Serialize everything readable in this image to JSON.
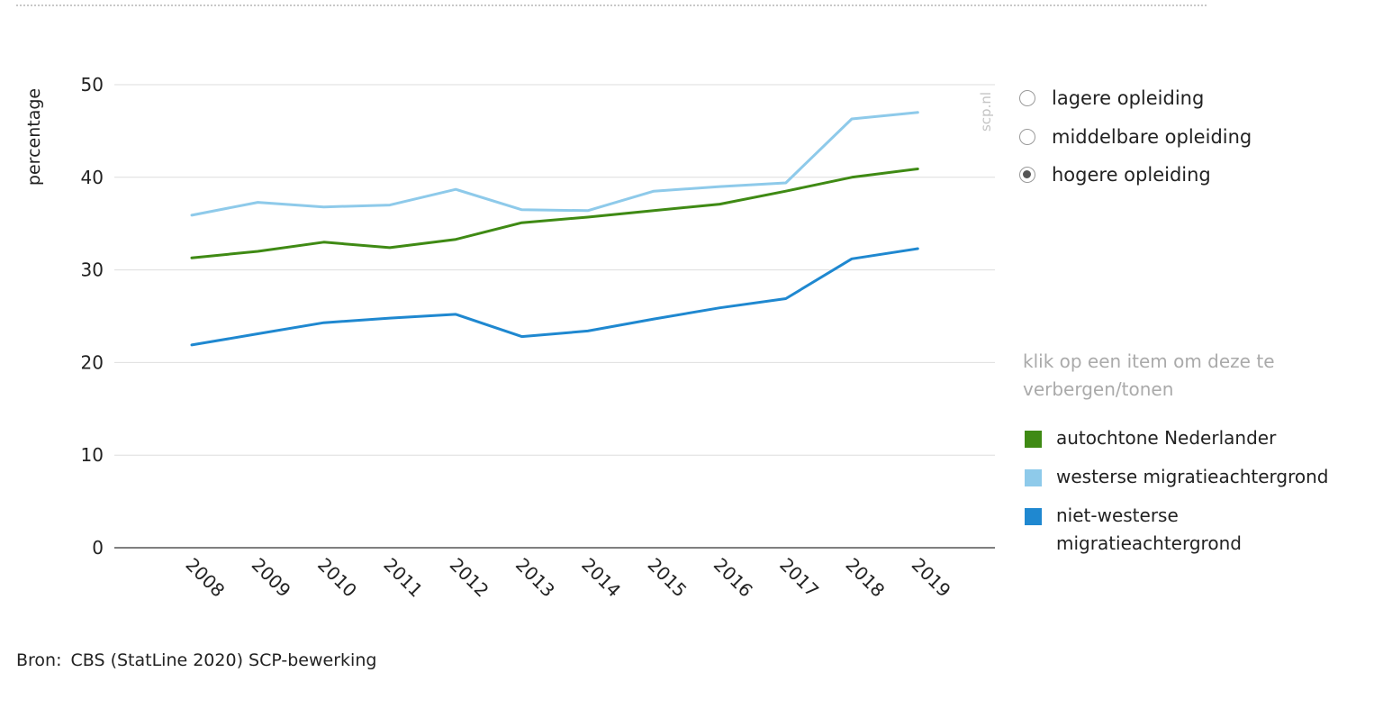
{
  "chart_data": {
    "type": "line",
    "title": "",
    "xlabel": "",
    "ylabel": "percentage",
    "ylim": [
      0,
      50
    ],
    "yticks": [
      0,
      10,
      20,
      30,
      40,
      50
    ],
    "categories": [
      "2008",
      "2009",
      "2010",
      "2011",
      "2012",
      "2013",
      "2014",
      "2015",
      "2016",
      "2017",
      "2018",
      "2019"
    ],
    "grid": true,
    "legend_position": "right",
    "watermark": "scp.nl",
    "series": [
      {
        "name": "autochtone Nederlander",
        "color": "#3f8a14",
        "values": [
          31.3,
          32.0,
          33.0,
          32.4,
          33.3,
          35.1,
          35.7,
          36.4,
          37.1,
          38.5,
          40.0,
          40.9
        ]
      },
      {
        "name": "westerse migratieachtergrond",
        "color": "#8ecaea",
        "values": [
          35.9,
          37.3,
          36.8,
          37.0,
          38.7,
          36.5,
          36.4,
          38.5,
          39.0,
          39.4,
          46.3,
          47.0
        ]
      },
      {
        "name": "niet-westerse migratieachtergrond",
        "color": "#1f88d0",
        "values": [
          21.9,
          23.1,
          24.3,
          24.8,
          25.2,
          22.8,
          23.4,
          24.7,
          25.9,
          26.9,
          31.2,
          32.3
        ]
      }
    ]
  },
  "filters": {
    "options": [
      {
        "label": "lagere opleiding",
        "checked": false
      },
      {
        "label": "middelbare opleiding",
        "checked": false
      },
      {
        "label": "hogere opleiding",
        "checked": true
      }
    ]
  },
  "legend": {
    "hint": "klik op een item om deze te verbergen/tonen",
    "items": [
      {
        "label": "autochtone Nederlander",
        "color": "#3f8a14"
      },
      {
        "label": "westerse migratieachtergrond",
        "color": "#8ecaea"
      },
      {
        "label": "niet-westerse migratieachtergrond",
        "color": "#1f88d0"
      }
    ]
  },
  "source": {
    "label": "Bron:",
    "text": "CBS (StatLine 2020) SCP-bewerking"
  }
}
